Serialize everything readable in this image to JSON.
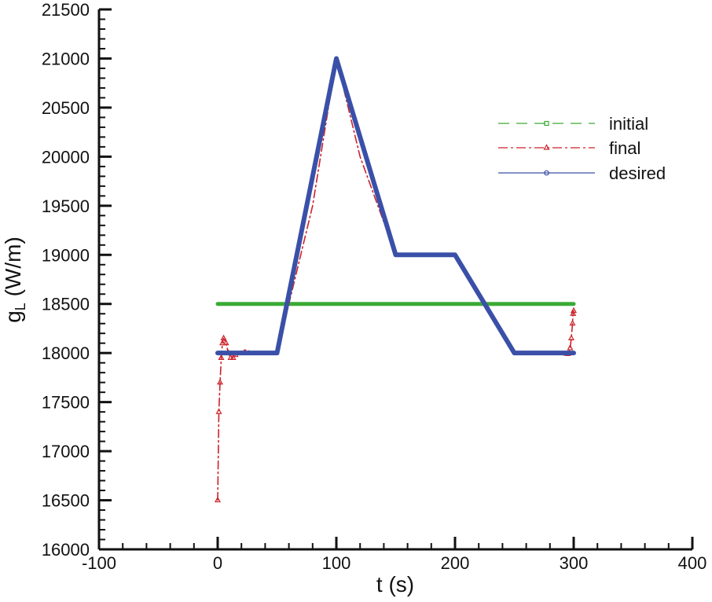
{
  "chart_data": {
    "type": "line",
    "xlabel": "t (s)",
    "ylabel_main": "g",
    "ylabel_sub": "L",
    "ylabel_unit": " (W/m)",
    "xlim": [
      -100,
      400
    ],
    "ylim": [
      16000,
      21500
    ],
    "x_ticks": [
      -100,
      0,
      100,
      200,
      300,
      400
    ],
    "x_tick_labels": [
      "-100",
      "0",
      "100",
      "200",
      "300",
      "400"
    ],
    "y_ticks": [
      16000,
      16500,
      17000,
      17500,
      18000,
      18500,
      19000,
      19500,
      20000,
      20500,
      21000,
      21500
    ],
    "y_tick_labels": [
      "16000",
      "16500",
      "17000",
      "17500",
      "18000",
      "18500",
      "19000",
      "19500",
      "20000",
      "20500",
      "21000",
      "21500"
    ],
    "grid": false,
    "legend_position": "top-right",
    "series": [
      {
        "name": "initial",
        "color": "#3aaa35",
        "style": "dashed",
        "marker": "square",
        "x": [
          0,
          300
        ],
        "y": [
          18500,
          18500
        ]
      },
      {
        "name": "final",
        "color": "#cc2229",
        "style": "dashdot",
        "marker": "triangle",
        "x": [
          0,
          1,
          2,
          3,
          4,
          5,
          7,
          9,
          11,
          13,
          15,
          18,
          21,
          25,
          29,
          33,
          40,
          50,
          60,
          80,
          100,
          120,
          150,
          170,
          185,
          200,
          225,
          250,
          270,
          285,
          292,
          295,
          297,
          298,
          299,
          299.5,
          300
        ],
        "y": [
          16500,
          17400,
          17700,
          17950,
          18100,
          18150,
          18100,
          18000,
          17950,
          17950,
          17980,
          18000,
          18030,
          18030,
          18000,
          18000,
          18000,
          18000,
          18500,
          19500,
          21000,
          20000,
          19000,
          19010,
          19000,
          19000,
          18500,
          18000,
          18000,
          18000,
          17980,
          17990,
          18050,
          18150,
          18300,
          18400,
          18430
        ]
      },
      {
        "name": "desired",
        "color": "#3a50a8",
        "style": "solid",
        "marker": "circle",
        "x": [
          0,
          50,
          100,
          150,
          200,
          250,
          300
        ],
        "y": [
          18000,
          18000,
          21000,
          19000,
          19000,
          18000,
          18000
        ]
      }
    ]
  }
}
